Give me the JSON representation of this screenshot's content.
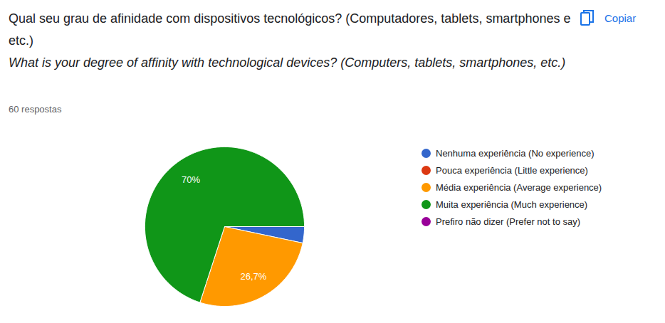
{
  "chart_data": {
    "type": "pie",
    "title": "Qual seu grau de afinidade com dispositivos tecnológicos? (Computadores, tablets, smartphones e etc.)",
    "subtitle": "What is your degree of affinity with technological devices? (Computers, tablets, smartphones, etc.)",
    "annotations": [
      "60 respostas",
      "Copiar"
    ],
    "categories": [
      "Nenhuma experiência (No experience)",
      "Pouca experiência (Little experience)",
      "Média experiência (Average experience)",
      "Muita experiência (Much experience)",
      "Prefiro não dizer (Prefer not to say)"
    ],
    "values": [
      3.3,
      0,
      26.7,
      70,
      0
    ],
    "value_labels": [
      null,
      null,
      "26,7%",
      "70%",
      null
    ],
    "colors": [
      "#3366cc",
      "#dc3912",
      "#ff9900",
      "#109618",
      "#990099"
    ],
    "data_labels": true,
    "legend": "right"
  }
}
